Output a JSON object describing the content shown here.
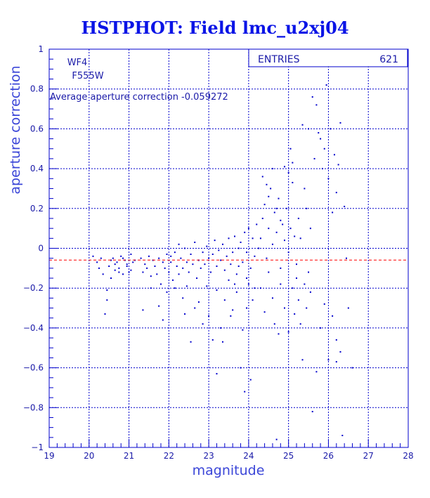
{
  "chart_data": {
    "type": "scatter",
    "title": "HSTPHOT: Field lmc_u2xj04",
    "xlabel": "magnitude",
    "ylabel": "aperture correction",
    "xlim": [
      19,
      28
    ],
    "ylim": [
      -1,
      1
    ],
    "xticks": [
      "19",
      "20",
      "21",
      "22",
      "23",
      "24",
      "25",
      "26",
      "27",
      "28"
    ],
    "yticks": [
      "-1",
      "-0.8",
      "-0.6",
      "-0.4",
      "-0.2",
      "0",
      "0.2",
      "0.4",
      "0.6",
      "0.8",
      "1"
    ],
    "grid": true,
    "legend": "none",
    "camera": "WF4",
    "filter": "F555W",
    "average_note": "Average aperture correction -0.059272",
    "average_value": -0.059272,
    "stats_box": {
      "label": "ENTRIES",
      "value": "621",
      "placement": "top-right"
    },
    "colors": {
      "points": "#0000cc",
      "grid": "#0000cc",
      "reference_line": "#ff0000",
      "title": "#0a14e6"
    },
    "points": [
      [
        20.1,
        -0.04
      ],
      [
        20.2,
        -0.07
      ],
      [
        20.25,
        -0.1
      ],
      [
        20.3,
        -0.05
      ],
      [
        20.35,
        -0.13
      ],
      [
        20.4,
        -0.33
      ],
      [
        20.45,
        -0.21
      ],
      [
        20.5,
        -0.09
      ],
      [
        20.55,
        -0.06
      ],
      [
        20.6,
        -0.05
      ],
      [
        20.65,
        -0.11
      ],
      [
        20.7,
        -0.07
      ],
      [
        20.75,
        -0.1
      ],
      [
        20.8,
        -0.04
      ],
      [
        20.85,
        -0.13
      ],
      [
        20.9,
        -0.06
      ],
      [
        20.95,
        -0.09
      ],
      [
        21.0,
        -0.12
      ],
      [
        21.05,
        -0.03
      ],
      [
        21.1,
        -0.07
      ],
      [
        20.45,
        -0.26
      ],
      [
        20.55,
        -0.15
      ],
      [
        20.65,
        -0.08
      ],
      [
        20.75,
        -0.12
      ],
      [
        20.85,
        -0.05
      ],
      [
        20.95,
        -0.08
      ],
      [
        21.05,
        -0.11
      ],
      [
        21.15,
        -0.06
      ],
      [
        21.3,
        -0.05
      ],
      [
        21.35,
        -0.12
      ],
      [
        21.4,
        -0.08
      ],
      [
        21.45,
        -0.1
      ],
      [
        21.5,
        -0.04
      ],
      [
        21.55,
        -0.14
      ],
      [
        21.6,
        -0.06
      ],
      [
        21.65,
        -0.09
      ],
      [
        21.7,
        -0.13
      ],
      [
        21.75,
        -0.05
      ],
      [
        21.8,
        -0.18
      ],
      [
        21.85,
        -0.07
      ],
      [
        21.9,
        -0.1
      ],
      [
        21.95,
        -0.03
      ],
      [
        22.0,
        -0.12
      ],
      [
        22.05,
        -0.07
      ],
      [
        22.1,
        -0.16
      ],
      [
        22.15,
        -0.02
      ],
      [
        22.2,
        -0.09
      ],
      [
        22.25,
        0.02
      ],
      [
        21.35,
        -0.31
      ],
      [
        21.55,
        -0.2
      ],
      [
        21.75,
        -0.29
      ],
      [
        21.85,
        -0.36
      ],
      [
        21.95,
        -0.22
      ],
      [
        22.05,
        -0.04
      ],
      [
        22.15,
        -0.2
      ],
      [
        22.25,
        -0.13
      ],
      [
        22.35,
        -0.25
      ],
      [
        22.45,
        -0.19
      ],
      [
        22.3,
        -0.05
      ],
      [
        22.35,
        -0.1
      ],
      [
        22.4,
        0.0
      ],
      [
        22.45,
        -0.07
      ],
      [
        22.5,
        -0.12
      ],
      [
        22.55,
        -0.03
      ],
      [
        22.6,
        -0.08
      ],
      [
        22.65,
        0.03
      ],
      [
        22.7,
        -0.15
      ],
      [
        22.75,
        -0.06
      ],
      [
        22.8,
        -0.1
      ],
      [
        22.85,
        -0.02
      ],
      [
        22.9,
        -0.08
      ],
      [
        22.95,
        0.01
      ],
      [
        23.0,
        -0.05
      ],
      [
        23.05,
        -0.12
      ],
      [
        23.1,
        -0.03
      ],
      [
        23.15,
        0.04
      ],
      [
        23.2,
        -0.09
      ],
      [
        23.25,
        -0.01
      ],
      [
        22.4,
        -0.33
      ],
      [
        22.55,
        -0.47
      ],
      [
        22.65,
        -0.3
      ],
      [
        22.75,
        -0.27
      ],
      [
        22.85,
        -0.38
      ],
      [
        22.95,
        -0.19
      ],
      [
        23.0,
        -0.34
      ],
      [
        23.1,
        -0.46
      ],
      [
        23.2,
        -0.21
      ],
      [
        23.3,
        -0.4
      ],
      [
        23.3,
        -0.06
      ],
      [
        23.35,
        0.02
      ],
      [
        23.4,
        -0.11
      ],
      [
        23.45,
        -0.04
      ],
      [
        23.5,
        0.05
      ],
      [
        23.55,
        -0.08
      ],
      [
        23.6,
        -0.02
      ],
      [
        23.65,
        0.06
      ],
      [
        23.7,
        -0.13
      ],
      [
        23.75,
        0.0
      ],
      [
        23.8,
        0.03
      ],
      [
        23.85,
        -0.07
      ],
      [
        23.9,
        0.08
      ],
      [
        23.95,
        -0.02
      ],
      [
        24.0,
        0.1
      ],
      [
        24.05,
        -0.1
      ],
      [
        24.1,
        0.05
      ],
      [
        24.15,
        -0.04
      ],
      [
        24.2,
        0.12
      ],
      [
        24.25,
        0.0
      ],
      [
        23.4,
        -0.26
      ],
      [
        23.5,
        -0.16
      ],
      [
        23.6,
        -0.31
      ],
      [
        23.7,
        -0.22
      ],
      [
        23.8,
        -0.6
      ],
      [
        23.85,
        -0.41
      ],
      [
        23.9,
        -0.72
      ],
      [
        23.95,
        -0.3
      ],
      [
        24.0,
        -0.18
      ],
      [
        24.05,
        -0.66
      ],
      [
        23.2,
        -0.63
      ],
      [
        23.35,
        -0.47
      ],
      [
        23.55,
        -0.34
      ],
      [
        23.65,
        -0.18
      ],
      [
        23.75,
        -0.09
      ],
      [
        23.95,
        -0.15
      ],
      [
        24.1,
        -0.26
      ],
      [
        24.15,
        -0.2
      ],
      [
        24.3,
        0.05
      ],
      [
        24.35,
        0.15
      ],
      [
        24.4,
        0.22
      ],
      [
        24.45,
        -0.05
      ],
      [
        24.5,
        0.1
      ],
      [
        24.55,
        0.3
      ],
      [
        24.6,
        0.02
      ],
      [
        24.65,
        0.18
      ],
      [
        24.7,
        0.08
      ],
      [
        24.75,
        0.25
      ],
      [
        24.8,
        -0.1
      ],
      [
        24.85,
        0.12
      ],
      [
        24.9,
        0.04
      ],
      [
        24.95,
        0.2
      ],
      [
        25.0,
        -0.02
      ],
      [
        25.05,
        0.1
      ],
      [
        25.1,
        0.33
      ],
      [
        25.15,
        0.06
      ],
      [
        25.2,
        -0.08
      ],
      [
        25.25,
        0.15
      ],
      [
        24.35,
        0.36
      ],
      [
        24.45,
        0.32
      ],
      [
        24.5,
        0.26
      ],
      [
        24.6,
        0.4
      ],
      [
        24.7,
        0.2
      ],
      [
        24.8,
        0.14
      ],
      [
        24.9,
        0.41
      ],
      [
        25.0,
        0.38
      ],
      [
        25.05,
        0.5
      ],
      [
        25.1,
        0.43
      ],
      [
        24.3,
        -0.2
      ],
      [
        24.4,
        -0.32
      ],
      [
        24.5,
        -0.12
      ],
      [
        24.6,
        -0.25
      ],
      [
        24.65,
        -0.38
      ],
      [
        24.7,
        -0.96
      ],
      [
        24.75,
        -0.43
      ],
      [
        24.8,
        -0.18
      ],
      [
        24.9,
        -0.3
      ],
      [
        25.0,
        -0.42
      ],
      [
        25.1,
        -0.2
      ],
      [
        25.15,
        -0.33
      ],
      [
        25.2,
        -0.15
      ],
      [
        25.25,
        -0.26
      ],
      [
        25.3,
        -0.38
      ],
      [
        25.35,
        -0.56
      ],
      [
        25.4,
        -0.18
      ],
      [
        25.45,
        -0.3
      ],
      [
        25.5,
        -0.12
      ],
      [
        25.55,
        -0.22
      ],
      [
        25.3,
        0.05
      ],
      [
        25.35,
        0.62
      ],
      [
        25.4,
        0.3
      ],
      [
        25.45,
        0.2
      ],
      [
        25.5,
        0.6
      ],
      [
        25.55,
        0.1
      ],
      [
        25.6,
        0.76
      ],
      [
        25.65,
        0.45
      ],
      [
        25.7,
        0.72
      ],
      [
        25.75,
        0.58
      ],
      [
        25.8,
        0.55
      ],
      [
        25.85,
        0.4
      ],
      [
        25.9,
        0.5
      ],
      [
        25.95,
        0.82
      ],
      [
        26.0,
        0.35
      ],
      [
        26.05,
        0.6
      ],
      [
        26.1,
        0.18
      ],
      [
        26.15,
        0.47
      ],
      [
        26.2,
        0.28
      ],
      [
        26.25,
        0.42
      ],
      [
        25.6,
        -0.82
      ],
      [
        25.7,
        -0.62
      ],
      [
        25.8,
        -0.4
      ],
      [
        25.9,
        -0.28
      ],
      [
        26.0,
        -0.56
      ],
      [
        26.1,
        -0.34
      ],
      [
        26.2,
        -0.46
      ],
      [
        26.3,
        -0.52
      ],
      [
        26.35,
        -0.94
      ],
      [
        26.5,
        -0.3
      ],
      [
        26.6,
        -0.6
      ],
      [
        26.4,
        0.21
      ],
      [
        26.3,
        0.63
      ],
      [
        26.45,
        -0.05
      ],
      [
        26.2,
        -0.57
      ]
    ]
  }
}
